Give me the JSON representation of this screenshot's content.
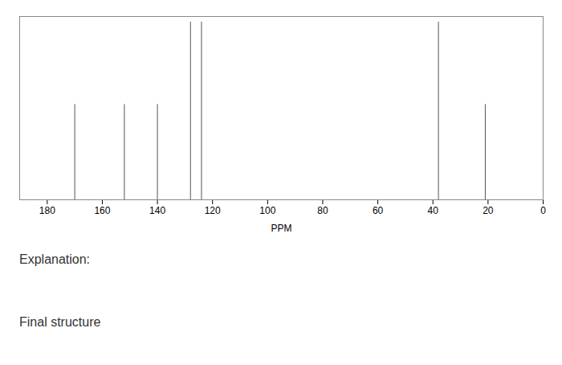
{
  "chart_data": {
    "type": "stem",
    "x": [
      170,
      152,
      140,
      128,
      124,
      38,
      21
    ],
    "values": [
      0.52,
      0.52,
      0.52,
      0.97,
      0.97,
      0.97,
      0.52
    ],
    "color": "#555555",
    "xlabel": "PPM",
    "xlim": [
      190,
      0
    ],
    "xticks": [
      0,
      20,
      40,
      60,
      80,
      100,
      120,
      140,
      160,
      180
    ],
    "ylim": [
      0,
      1.0
    ],
    "yticks": [],
    "tick_labels": "x",
    "annotations": [
      "Explanation:",
      "Final structure"
    ]
  }
}
